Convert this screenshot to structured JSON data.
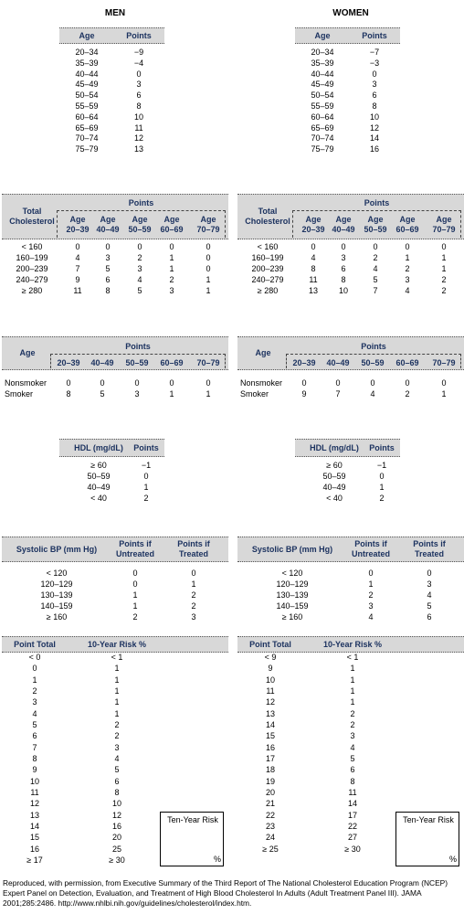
{
  "men": {
    "title": "MEN",
    "age": {
      "headers": [
        "Age",
        "Points"
      ],
      "rows": [
        [
          "20–34",
          "−9"
        ],
        [
          "35–39",
          "−4"
        ],
        [
          "40–44",
          "0"
        ],
        [
          "45–49",
          "3"
        ],
        [
          "50–54",
          "6"
        ],
        [
          "55–59",
          "8"
        ],
        [
          "60–64",
          "10"
        ],
        [
          "65–69",
          "11"
        ],
        [
          "70–74",
          "12"
        ],
        [
          "75–79",
          "13"
        ]
      ]
    },
    "cholesterol": {
      "group_header": "Points",
      "headers": [
        "Total Cholesterol",
        "Age 20–39",
        "Age 40–49",
        "Age 50–59",
        "Age 60–69",
        "Age 70–79"
      ],
      "rows": [
        [
          "< 160",
          "0",
          "0",
          "0",
          "0",
          "0"
        ],
        [
          "160–199",
          "4",
          "3",
          "2",
          "1",
          "0"
        ],
        [
          "200–239",
          "7",
          "5",
          "3",
          "1",
          "0"
        ],
        [
          "240–279",
          "9",
          "6",
          "4",
          "2",
          "1"
        ],
        [
          "≥ 280",
          "11",
          "8",
          "5",
          "3",
          "1"
        ]
      ]
    },
    "smoking": {
      "group_header": "Points",
      "headers": [
        "Age",
        "20–39",
        "40–49",
        "50–59",
        "60–69",
        "70–79"
      ],
      "rows": [
        [
          "Nonsmoker",
          "0",
          "0",
          "0",
          "0",
          "0"
        ],
        [
          "Smoker",
          "8",
          "5",
          "3",
          "1",
          "1"
        ]
      ]
    },
    "hdl": {
      "headers": [
        "HDL (mg/dL)",
        "Points"
      ],
      "rows": [
        [
          "≥ 60",
          "−1"
        ],
        [
          "50–59",
          "0"
        ],
        [
          "40–49",
          "1"
        ],
        [
          "< 40",
          "2"
        ]
      ]
    },
    "bp": {
      "headers": [
        "Systolic BP (mm Hg)",
        "Points if Untreated",
        "Points if Treated"
      ],
      "rows": [
        [
          "< 120",
          "0",
          "0"
        ],
        [
          "120–129",
          "0",
          "1"
        ],
        [
          "130–139",
          "1",
          "2"
        ],
        [
          "140–159",
          "1",
          "2"
        ],
        [
          "≥ 160",
          "2",
          "3"
        ]
      ]
    },
    "risk": {
      "headers": [
        "Point Total",
        "10-Year Risk %"
      ],
      "rows": [
        [
          "< 0",
          "< 1"
        ],
        [
          "0",
          "1"
        ],
        [
          "1",
          "1"
        ],
        [
          "2",
          "1"
        ],
        [
          "3",
          "1"
        ],
        [
          "4",
          "1"
        ],
        [
          "5",
          "2"
        ],
        [
          "6",
          "2"
        ],
        [
          "7",
          "3"
        ],
        [
          "8",
          "4"
        ],
        [
          "9",
          "5"
        ],
        [
          "10",
          "6"
        ],
        [
          "11",
          "8"
        ],
        [
          "12",
          "10"
        ],
        [
          "13",
          "12"
        ],
        [
          "14",
          "16"
        ],
        [
          "15",
          "20"
        ],
        [
          "16",
          "25"
        ],
        [
          "≥ 17",
          "≥ 30"
        ]
      ],
      "box_title": "Ten-Year Risk",
      "box_unit": "%"
    }
  },
  "women": {
    "title": "WOMEN",
    "age": {
      "headers": [
        "Age",
        "Points"
      ],
      "rows": [
        [
          "20–34",
          "−7"
        ],
        [
          "35–39",
          "−3"
        ],
        [
          "40–44",
          "0"
        ],
        [
          "45–49",
          "3"
        ],
        [
          "50–54",
          "6"
        ],
        [
          "55–59",
          "8"
        ],
        [
          "60–64",
          "10"
        ],
        [
          "65–69",
          "12"
        ],
        [
          "70–74",
          "14"
        ],
        [
          "75–79",
          "16"
        ]
      ]
    },
    "cholesterol": {
      "group_header": "Points",
      "headers": [
        "Total Cholesterol",
        "Age 20–39",
        "Age 40–49",
        "Age 50–59",
        "Age 60–69",
        "Age 70–79"
      ],
      "rows": [
        [
          "< 160",
          "0",
          "0",
          "0",
          "0",
          "0"
        ],
        [
          "160–199",
          "4",
          "3",
          "2",
          "1",
          "1"
        ],
        [
          "200–239",
          "8",
          "6",
          "4",
          "2",
          "1"
        ],
        [
          "240–279",
          "11",
          "8",
          "5",
          "3",
          "2"
        ],
        [
          "≥ 280",
          "13",
          "10",
          "7",
          "4",
          "2"
        ]
      ]
    },
    "smoking": {
      "group_header": "Points",
      "headers": [
        "Age",
        "20–39",
        "40–49",
        "50–59",
        "60–69",
        "70–79"
      ],
      "rows": [
        [
          "Nonsmoker",
          "0",
          "0",
          "0",
          "0",
          "0"
        ],
        [
          "Smoker",
          "9",
          "7",
          "4",
          "2",
          "1"
        ]
      ]
    },
    "hdl": {
      "headers": [
        "HDL (mg/dL)",
        "Points"
      ],
      "rows": [
        [
          "≥ 60",
          "−1"
        ],
        [
          "50–59",
          "0"
        ],
        [
          "40–49",
          "1"
        ],
        [
          "< 40",
          "2"
        ]
      ]
    },
    "bp": {
      "headers": [
        "Systolic BP (mm Hg)",
        "Points if Untreated",
        "Points if Treated"
      ],
      "rows": [
        [
          "< 120",
          "0",
          "0"
        ],
        [
          "120–129",
          "1",
          "3"
        ],
        [
          "130–139",
          "2",
          "4"
        ],
        [
          "140–159",
          "3",
          "5"
        ],
        [
          "≥ 160",
          "4",
          "6"
        ]
      ]
    },
    "risk": {
      "headers": [
        "Point Total",
        "10-Year Risk %"
      ],
      "rows": [
        [
          "< 9",
          "< 1"
        ],
        [
          "9",
          "1"
        ],
        [
          "10",
          "1"
        ],
        [
          "11",
          "1"
        ],
        [
          "12",
          "1"
        ],
        [
          "13",
          "2"
        ],
        [
          "14",
          "2"
        ],
        [
          "15",
          "3"
        ],
        [
          "16",
          "4"
        ],
        [
          "17",
          "5"
        ],
        [
          "18",
          "6"
        ],
        [
          "19",
          "8"
        ],
        [
          "20",
          "11"
        ],
        [
          "21",
          "14"
        ],
        [
          "22",
          "17"
        ],
        [
          "23",
          "22"
        ],
        [
          "24",
          "27"
        ],
        [
          "≥ 25",
          "≥ 30"
        ]
      ],
      "box_title": "Ten-Year Risk",
      "box_unit": "%"
    }
  },
  "footer": "Reproduced, with permission, from Executive Summary of the Third Report of The National Cholesterol Education Program (NCEP) Expert Panel on Detection, Evaluation, and Treatment of High Blood Cholesterol In Adults (Adult Treatment Panel III). JAMA 2001;285:2486. http://www.nhlbi.nih.gov/guidelines/cholesterol/index.htm."
}
